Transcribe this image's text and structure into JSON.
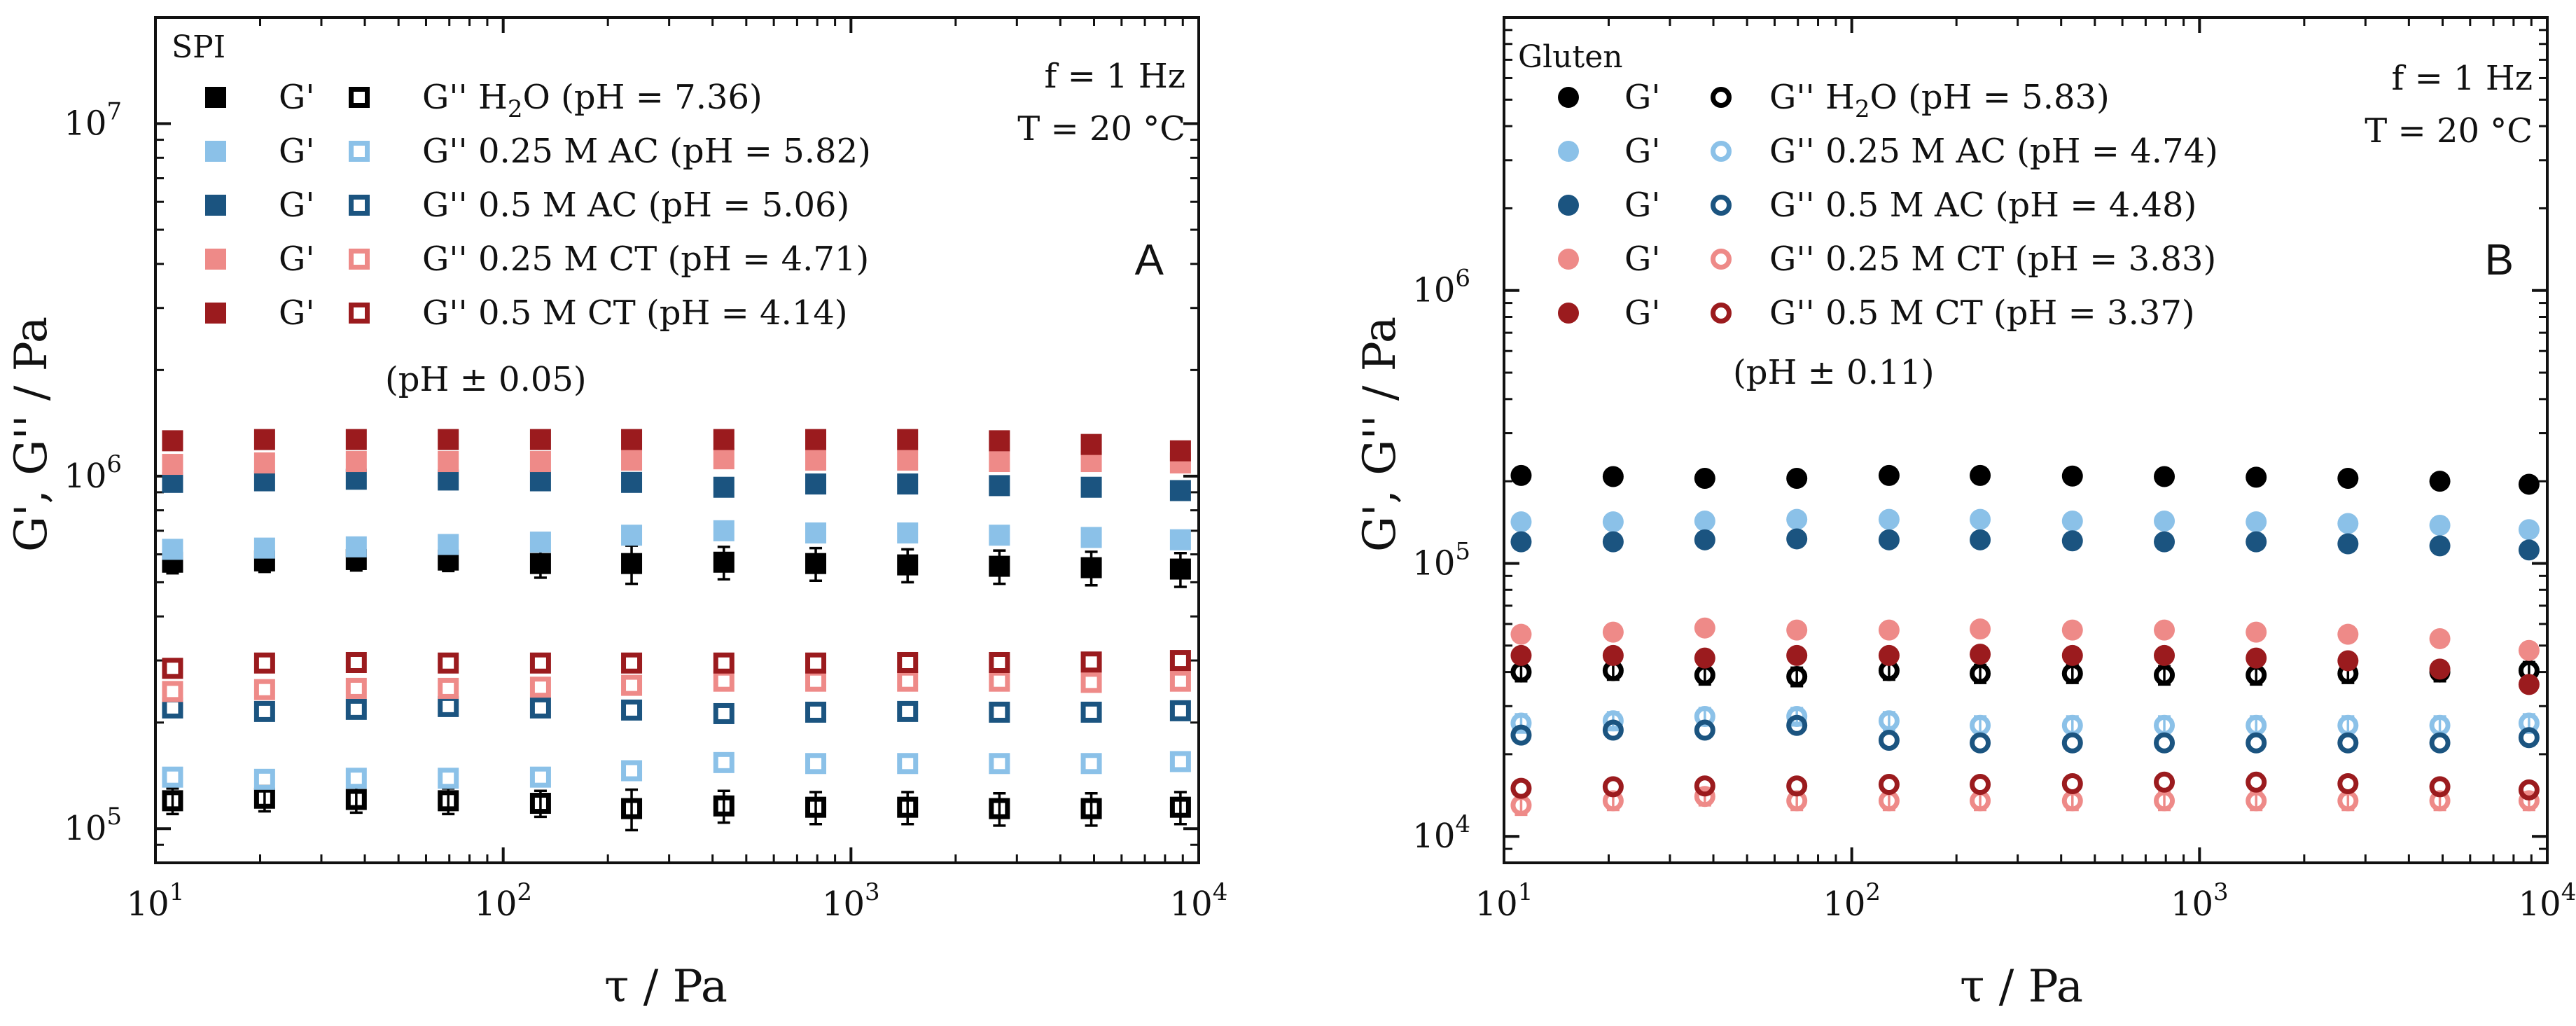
{
  "colors": {
    "water": "#000000",
    "ac025": "#8BC1E8",
    "ac05": "#1B5480",
    "ct025": "#EE8A88",
    "ct05": "#9B1B1E"
  },
  "chart_data": [
    {
      "id": "A",
      "type": "scatter",
      "panel_label": "A",
      "sample_label": "SPI",
      "marker": "square",
      "conditions": [
        "f = 1 Hz",
        "T = 20 °C"
      ],
      "xlabel": "τ / Pa",
      "ylabel": "G', G'' / Pa",
      "xscale": "log",
      "yscale": "log",
      "xlim": [
        10,
        10000
      ],
      "ylim": [
        80000,
        20000000
      ],
      "x_ticks": [
        {
          "value": 10,
          "base": "10",
          "exp": "1"
        },
        {
          "value": 100,
          "base": "10",
          "exp": "2"
        },
        {
          "value": 1000,
          "base": "10",
          "exp": "3"
        },
        {
          "value": 10000,
          "base": "10",
          "exp": "4"
        }
      ],
      "y_ticks": [
        {
          "value": 100000,
          "base": "10",
          "exp": "5"
        },
        {
          "value": 1000000,
          "base": "10",
          "exp": "6"
        },
        {
          "value": 10000000,
          "base": "10",
          "exp": "7"
        }
      ],
      "x": [
        11.2,
        20.6,
        37.8,
        69.5,
        128,
        234,
        431,
        792,
        1455,
        2672,
        4910,
        8860
      ],
      "ph_note": "(pH ± 0.05)",
      "series": [
        {
          "name": "H2O",
          "color_key": "water",
          "legend_gp": "G'",
          "legend_gpp": "G''",
          "legend_text": " (pH = 7.36)",
          "chem_main": "H",
          "chem_sub": "2",
          "chem_tail": "O",
          "g_prime": [
            570000,
            575000,
            580000,
            578000,
            565000,
            565000,
            570000,
            565000,
            560000,
            555000,
            550000,
            545000
          ],
          "g_prime_err": [
            40000,
            40000,
            40000,
            40000,
            50000,
            70000,
            60000,
            60000,
            60000,
            60000,
            60000,
            60000
          ],
          "g_double_prime": [
            120000,
            122000,
            121000,
            120000,
            118000,
            114000,
            116000,
            115000,
            115000,
            114000,
            114000,
            115000
          ],
          "g_double_prime_err": [
            10000,
            10000,
            10000,
            10000,
            10000,
            15000,
            12000,
            12000,
            12000,
            12000,
            12000,
            12000
          ]
        },
        {
          "name": "0.25 M AC",
          "color_key": "ac025",
          "legend_gp": "G'",
          "legend_gpp": "G''",
          "legend_text": " 0.25 M AC (pH = 5.82)",
          "chem_main": "",
          "chem_sub": "",
          "chem_tail": "",
          "g_prime": [
            620000,
            625000,
            630000,
            640000,
            650000,
            680000,
            700000,
            690000,
            690000,
            680000,
            670000,
            660000
          ],
          "g_double_prime": [
            140000,
            138000,
            139000,
            139000,
            140000,
            146000,
            154000,
            153000,
            153000,
            153000,
            153000,
            155000
          ]
        },
        {
          "name": "0.5 M AC",
          "color_key": "ac05",
          "legend_gp": "G'",
          "legend_gpp": "G''",
          "legend_text": " 0.5 M AC (pH = 5.06)",
          "chem_main": "",
          "chem_sub": "",
          "chem_tail": "",
          "g_prime": [
            960000,
            970000,
            980000,
            975000,
            970000,
            960000,
            930000,
            950000,
            950000,
            940000,
            930000,
            910000
          ],
          "g_double_prime": [
            220000,
            215000,
            218000,
            222000,
            220000,
            217000,
            212000,
            214000,
            215000,
            214000,
            214000,
            216000
          ]
        },
        {
          "name": "0.25 M CT",
          "color_key": "ct025",
          "legend_gp": "G'",
          "legend_gpp": "G''",
          "legend_text": " 0.25 M CT (pH = 4.71)",
          "chem_main": "",
          "chem_sub": "",
          "chem_tail": "",
          "g_prime": [
            1080000,
            1090000,
            1100000,
            1100000,
            1100000,
            1110000,
            1120000,
            1110000,
            1110000,
            1100000,
            1100000,
            1090000
          ],
          "g_double_prime": [
            245000,
            248000,
            250000,
            250000,
            252000,
            255000,
            262000,
            262000,
            262000,
            262000,
            260000,
            262000
          ]
        },
        {
          "name": "0.5 M CT",
          "color_key": "ct05",
          "legend_gp": "G'",
          "legend_gpp": "G''",
          "legend_text": " 0.5 M CT (pH = 4.14)",
          "chem_main": "",
          "chem_sub": "",
          "chem_tail": "",
          "g_prime": [
            1260000,
            1270000,
            1270000,
            1270000,
            1270000,
            1270000,
            1270000,
            1270000,
            1270000,
            1260000,
            1230000,
            1180000
          ],
          "g_double_prime": [
            285000,
            295000,
            296000,
            295000,
            295000,
            295000,
            295000,
            295000,
            296000,
            296000,
            297000,
            300000
          ]
        }
      ]
    },
    {
      "id": "B",
      "type": "scatter",
      "panel_label": "B",
      "sample_label": "Gluten",
      "marker": "circle",
      "conditions": [
        "f = 1 Hz",
        "T = 20 °C"
      ],
      "xlabel": "τ / Pa",
      "ylabel": "G', G'' / Pa",
      "xscale": "log",
      "yscale": "log",
      "xlim": [
        10,
        10000
      ],
      "ylim": [
        8000,
        10000000
      ],
      "x_ticks": [
        {
          "value": 10,
          "base": "10",
          "exp": "1"
        },
        {
          "value": 100,
          "base": "10",
          "exp": "2"
        },
        {
          "value": 1000,
          "base": "10",
          "exp": "3"
        },
        {
          "value": 10000,
          "base": "10",
          "exp": "4"
        }
      ],
      "y_ticks": [
        {
          "value": 10000,
          "base": "10",
          "exp": "4"
        },
        {
          "value": 100000,
          "base": "10",
          "exp": "5"
        },
        {
          "value": 1000000,
          "base": "10",
          "exp": "6"
        }
      ],
      "x": [
        11.2,
        20.6,
        37.8,
        69.5,
        128,
        234,
        431,
        792,
        1455,
        2672,
        4910,
        8860
      ],
      "ph_note": "(pH ± 0.11)",
      "series": [
        {
          "name": "H2O",
          "color_key": "water",
          "legend_gp": "G'",
          "legend_gpp": "G''",
          "legend_text": " (pH = 5.83)",
          "chem_main": "H",
          "chem_sub": "2",
          "chem_tail": "O",
          "g_prime": [
            210000,
            208000,
            205000,
            205000,
            210000,
            210000,
            209000,
            208000,
            207000,
            205000,
            200000,
            195000
          ],
          "g_double_prime": [
            40000,
            40500,
            39000,
            38500,
            40500,
            39500,
            39500,
            39000,
            39000,
            39500,
            40000,
            40500
          ],
          "g_double_prime_err": [
            3000,
            3000,
            3000,
            3000,
            3000,
            3000,
            3000,
            3000,
            3000,
            3000,
            3000,
            3000
          ]
        },
        {
          "name": "0.25 M AC",
          "color_key": "ac025",
          "legend_gp": "G'",
          "legend_gpp": "G''",
          "legend_text": " 0.25 M AC (pH = 4.74)",
          "chem_main": "",
          "chem_sub": "",
          "chem_tail": "",
          "g_prime": [
            142000,
            142000,
            143000,
            145000,
            145000,
            145000,
            143000,
            143000,
            142000,
            140000,
            138000,
            133000
          ],
          "g_double_prime": [
            26000,
            26500,
            27500,
            27500,
            26500,
            25500,
            25500,
            25500,
            25500,
            25500,
            25500,
            26000
          ],
          "g_double_prime_err": [
            2000,
            2000,
            2000,
            2000,
            2000,
            2000,
            2000,
            2000,
            2000,
            2000,
            2000,
            2000
          ]
        },
        {
          "name": "0.5 M AC",
          "color_key": "ac05",
          "legend_gp": "G'",
          "legend_gpp": "G''",
          "legend_text": " 0.5 M AC (pH = 4.48)",
          "chem_main": "",
          "chem_sub": "",
          "chem_tail": "",
          "g_prime": [
            120000,
            120000,
            122000,
            123000,
            122000,
            122000,
            121000,
            120000,
            120000,
            118000,
            116000,
            112000
          ],
          "g_double_prime": [
            23500,
            24500,
            24500,
            25500,
            22500,
            22000,
            22000,
            22000,
            22000,
            22000,
            22000,
            23000
          ]
        },
        {
          "name": "0.25 M CT",
          "color_key": "ct025",
          "legend_gp": "G'",
          "legend_gpp": "G''",
          "legend_text": " 0.25 M CT (pH = 3.83)",
          "chem_main": "",
          "chem_sub": "",
          "chem_tail": "",
          "g_prime": [
            55000,
            56000,
            58000,
            57000,
            57000,
            57500,
            57000,
            57000,
            56000,
            55000,
            53000,
            48000
          ],
          "g_double_prime": [
            13000,
            13500,
            14000,
            13500,
            13500,
            13500,
            13500,
            13500,
            13500,
            13500,
            13500,
            13500
          ],
          "g_double_prime_err": [
            1000,
            1000,
            1000,
            1000,
            1000,
            1000,
            1000,
            1000,
            1000,
            1000,
            1000,
            1000
          ]
        },
        {
          "name": "0.5 M CT",
          "color_key": "ct05",
          "legend_gp": "G'",
          "legend_gpp": "G''",
          "legend_text": " 0.5 M CT (pH = 3.37)",
          "chem_main": "",
          "chem_sub": "",
          "chem_tail": "",
          "g_prime": [
            46000,
            46000,
            45000,
            46000,
            46000,
            46500,
            46000,
            46000,
            45000,
            44000,
            41000,
            36000
          ],
          "g_double_prime": [
            15000,
            15200,
            15300,
            15300,
            15500,
            15500,
            15600,
            15800,
            15800,
            15600,
            15200,
            14800
          ]
        }
      ]
    }
  ]
}
